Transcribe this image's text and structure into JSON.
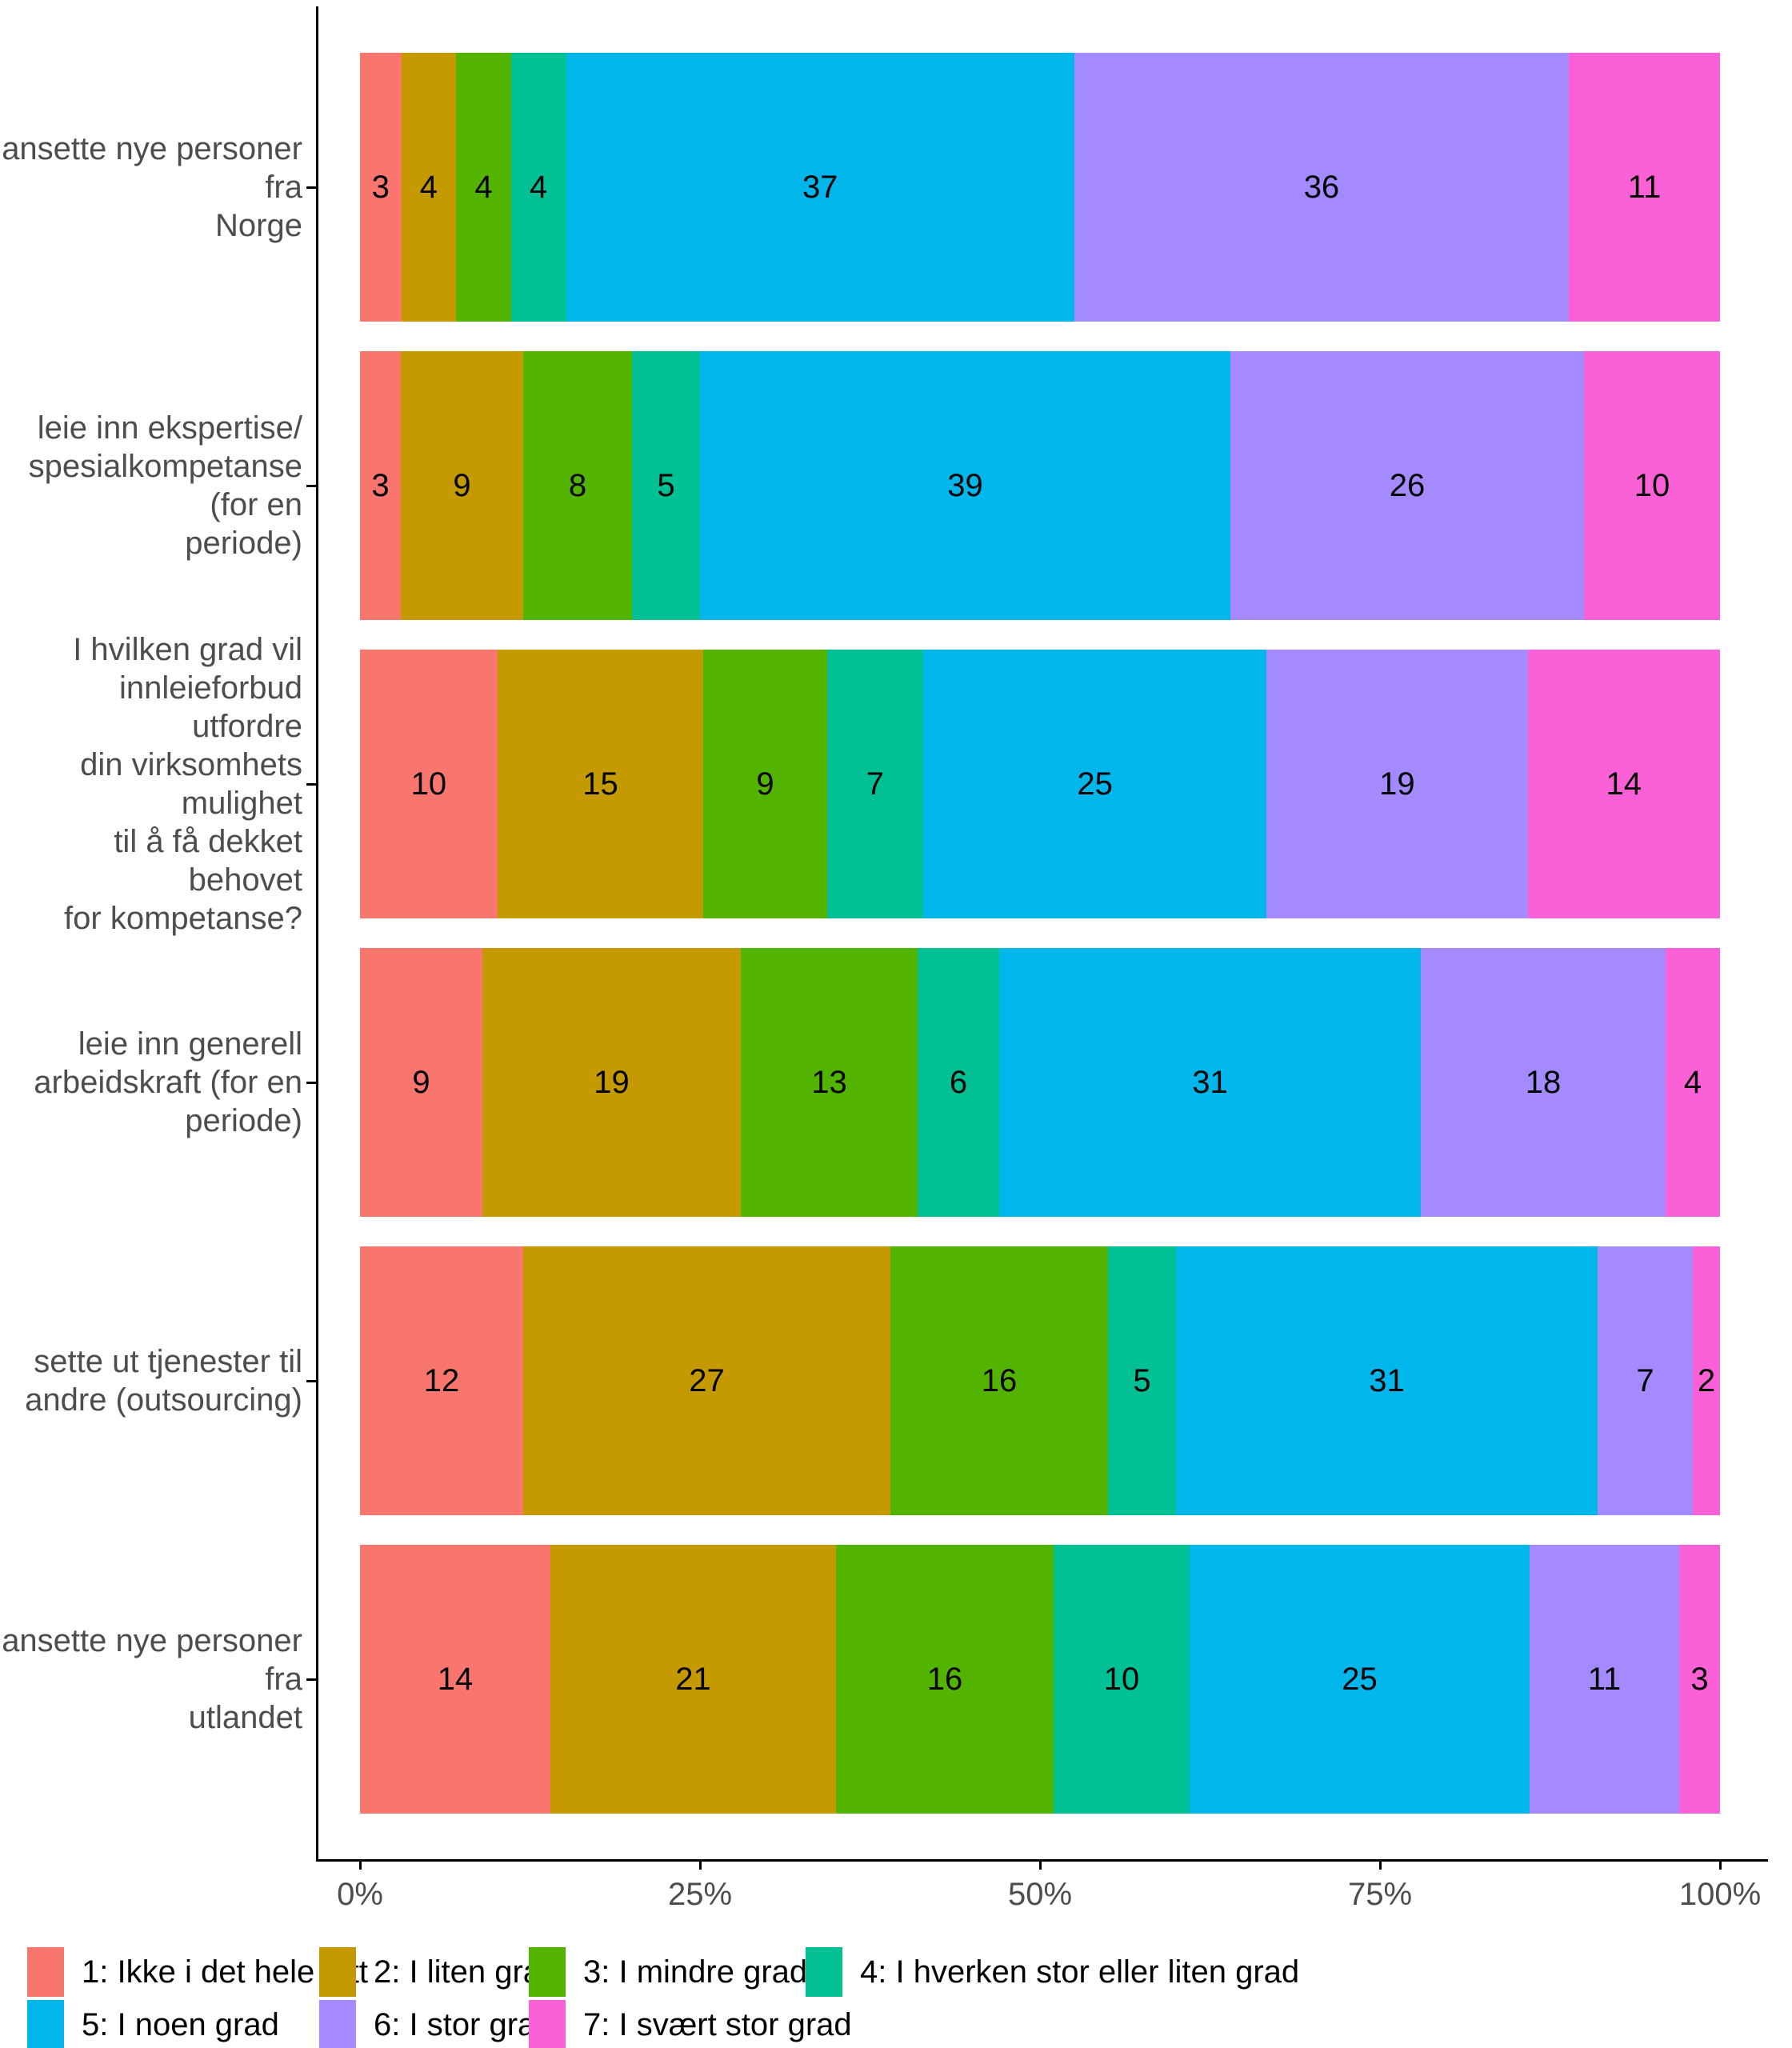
{
  "chart_data": {
    "type": "bar",
    "orientation": "horizontal",
    "stacking": "percent",
    "grid": false,
    "legend_position": "bottom",
    "xlim": [
      0,
      100
    ],
    "x_ticks": [
      "0%",
      "25%",
      "50%",
      "75%",
      "100%"
    ],
    "categories": [
      "ansette nye personer fra\nNorge",
      "leie inn ekspertise/\nspesialkompetanse (for en\nperiode)",
      "I hvilken grad vil\ninnleieforbud utfordre\ndin virksomhets mulighet\ntil å få dekket behovet\nfor kompetanse?",
      "leie inn generell\narbeidskraft (for en\nperiode)",
      "sette ut tjenester til\nandre (outsourcing)",
      "ansette nye personer fra\nutlandet"
    ],
    "series": [
      {
        "name": "1: Ikke i det hele tatt",
        "color": "#F8766D",
        "values": [
          3,
          3,
          10,
          9,
          12,
          14
        ]
      },
      {
        "name": "2: I liten grad",
        "color": "#C49A00",
        "values": [
          4,
          9,
          15,
          19,
          27,
          21
        ]
      },
      {
        "name": "3: I mindre grad",
        "color": "#53B400",
        "values": [
          4,
          8,
          9,
          13,
          16,
          16
        ]
      },
      {
        "name": "4: I hverken stor eller liten grad",
        "color": "#00C094",
        "values": [
          4,
          5,
          7,
          6,
          5,
          10
        ]
      },
      {
        "name": "5: I noen grad",
        "color": "#00B6EB",
        "values": [
          37,
          39,
          25,
          31,
          31,
          25
        ]
      },
      {
        "name": "6: I stor grad",
        "color": "#A58AFF",
        "values": [
          36,
          26,
          19,
          18,
          7,
          11
        ]
      },
      {
        "name": "7: I svært stor grad",
        "color": "#FB61D7",
        "values": [
          11,
          10,
          14,
          4,
          2,
          3
        ]
      }
    ],
    "colors": {
      "axis_line": "#000000",
      "axis_text": "#4d4d4d",
      "bar_label": "#000000",
      "background": "#ffffff"
    }
  }
}
